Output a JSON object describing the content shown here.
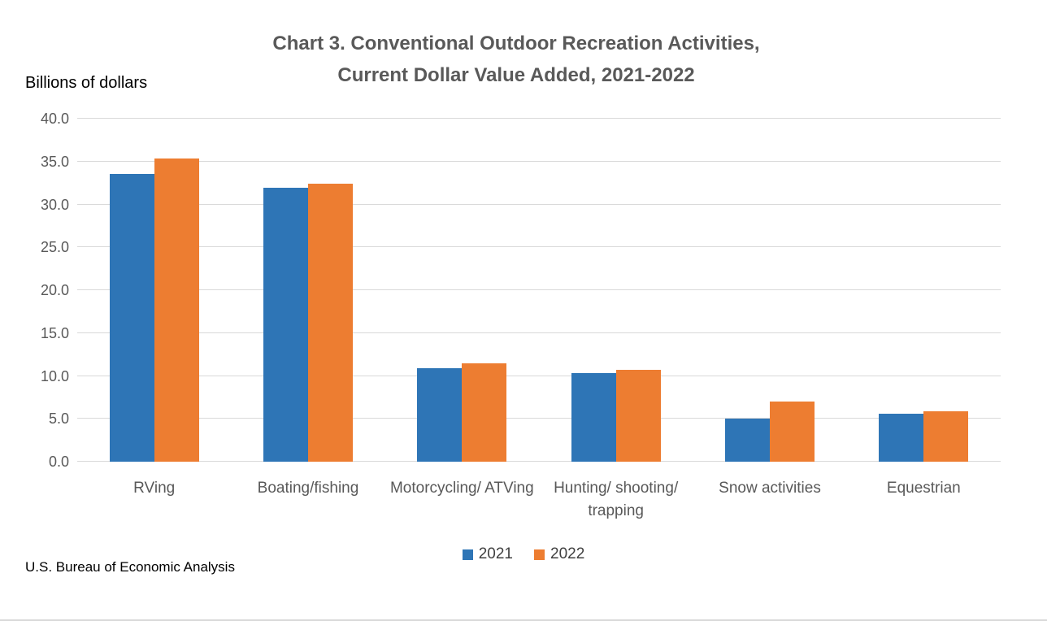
{
  "title": {
    "line1": "Chart 3. Conventional Outdoor Recreation Activities,",
    "line2": "Current Dollar Value Added, 2021-2022"
  },
  "units_label": "Billions of dollars",
  "source": "U.S. Bureau of Economic Analysis",
  "colors": {
    "series_2021": "#2e75b6",
    "series_2022": "#ed7d31",
    "gridline": "#d9d9d9",
    "axis_text": "#595959"
  },
  "chart_data": {
    "type": "bar",
    "title": "Chart 3. Conventional Outdoor Recreation Activities, Current Dollar Value Added, 2021-2022",
    "ylabel": "Billions of dollars",
    "xlabel": "",
    "categories": [
      "RVing",
      "Boating/fishing",
      "Motorcycling/ ATVing",
      "Hunting/ shooting/ trapping",
      "Snow activities",
      "Equestrian"
    ],
    "series": [
      {
        "name": "2021",
        "color": "#2e75b6",
        "values": [
          33.6,
          31.9,
          10.9,
          10.3,
          5.0,
          5.6
        ]
      },
      {
        "name": "2022",
        "color": "#ed7d31",
        "values": [
          35.4,
          32.4,
          11.5,
          10.7,
          7.0,
          5.9
        ]
      }
    ],
    "ylim": [
      0,
      40
    ],
    "ytick_step": 5,
    "ytick_format": "one_decimal",
    "grid": true,
    "legend_position": "bottom"
  }
}
